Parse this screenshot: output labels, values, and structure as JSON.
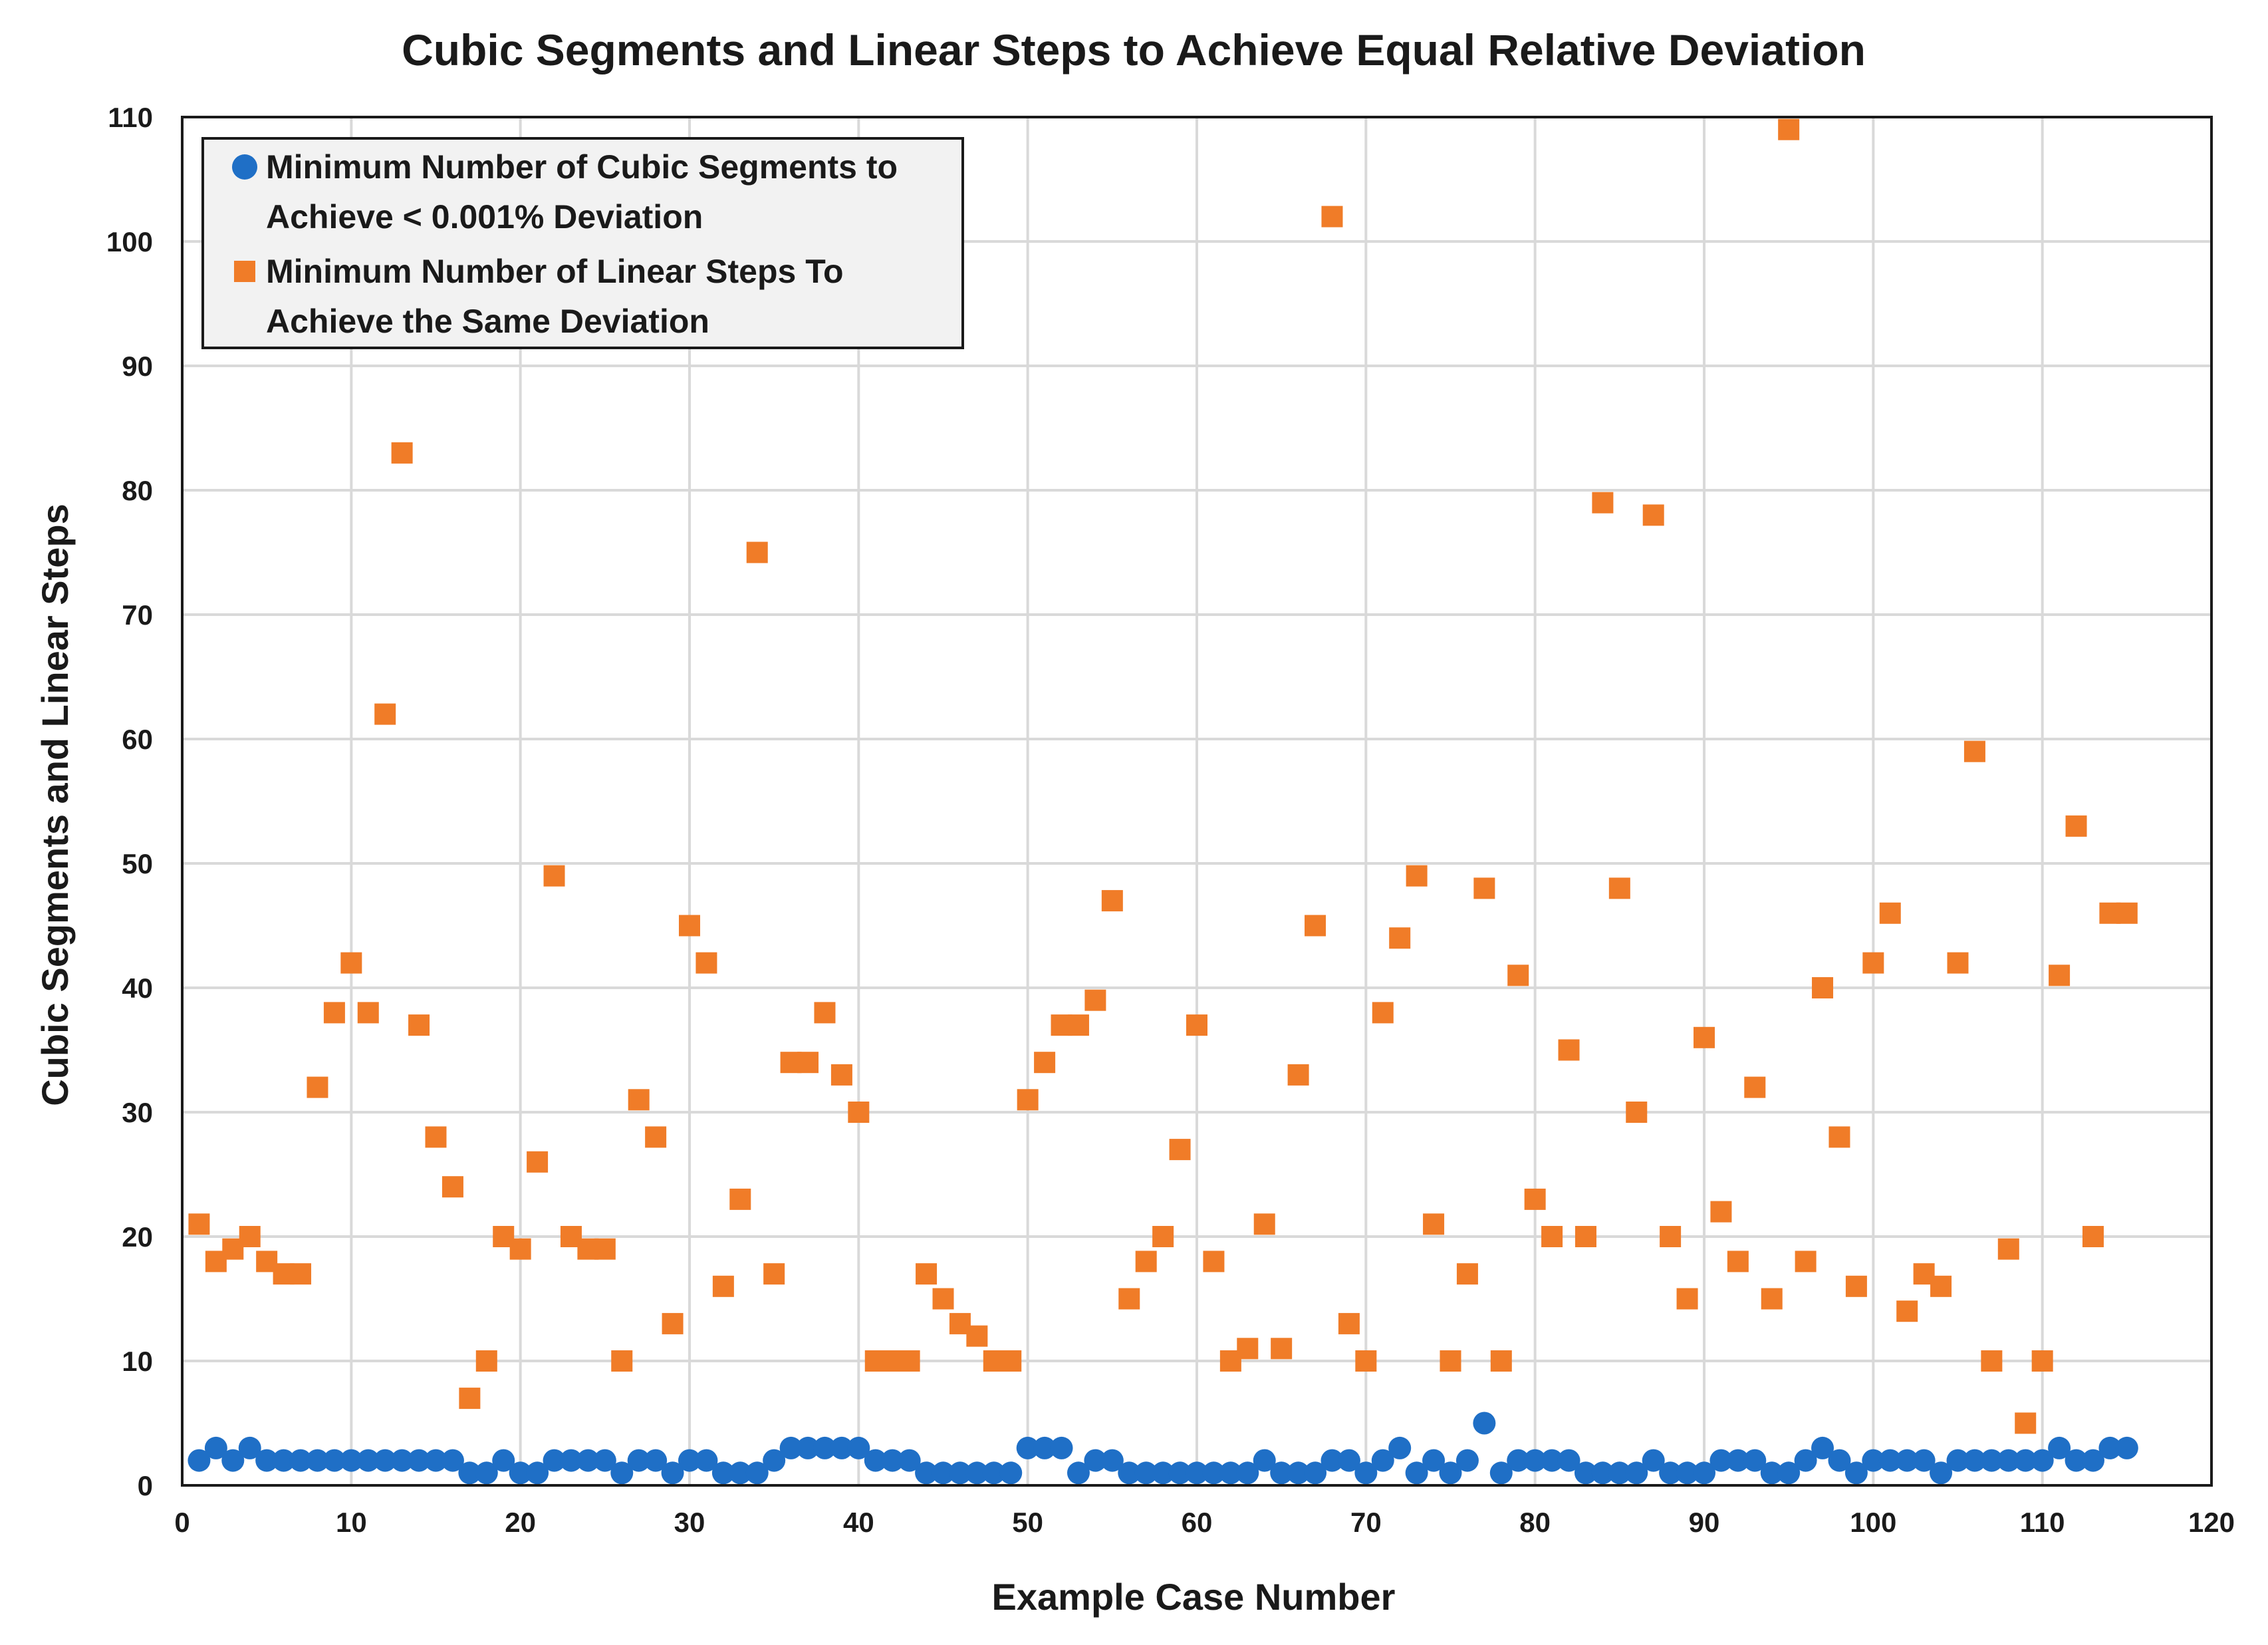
{
  "chart_data": {
    "type": "scatter",
    "title": "Cubic Segments and Linear Steps to Achieve Equal Relative Deviation",
    "xlabel": "Example Case Number",
    "ylabel": "Cubic Segments and Linear Steps",
    "xlim": [
      0,
      120
    ],
    "ylim": [
      0,
      110
    ],
    "x_ticks": [
      0,
      10,
      20,
      30,
      40,
      50,
      60,
      70,
      80,
      90,
      100,
      110,
      120
    ],
    "y_ticks": [
      0,
      10,
      20,
      30,
      40,
      50,
      60,
      70,
      80,
      90,
      100,
      110
    ],
    "grid": true,
    "legend_position": "top-left",
    "series": [
      {
        "name": "Minimum Number of Cubic Segments to Achieve < 0.001% Deviation",
        "legend_lines": [
          "Minimum Number of Cubic Segments to",
          "Achieve < 0.001% Deviation"
        ],
        "color": "#1f6fc6",
        "marker": "circle",
        "x": [
          1,
          2,
          3,
          4,
          5,
          6,
          7,
          8,
          9,
          10,
          11,
          12,
          13,
          14,
          15,
          16,
          17,
          18,
          19,
          20,
          21,
          22,
          23,
          24,
          25,
          26,
          27,
          28,
          29,
          30,
          31,
          32,
          33,
          34,
          35,
          36,
          37,
          38,
          39,
          40,
          41,
          42,
          43,
          44,
          45,
          46,
          47,
          48,
          49,
          50,
          51,
          52,
          53,
          54,
          55,
          56,
          57,
          58,
          59,
          60,
          61,
          62,
          63,
          64,
          65,
          66,
          67,
          68,
          69,
          70,
          71,
          72,
          73,
          74,
          75,
          76,
          77,
          78,
          79,
          80,
          81,
          82,
          83,
          84,
          85,
          86,
          87,
          88,
          89,
          90,
          91,
          92,
          93,
          94,
          95,
          96,
          97,
          98,
          99,
          100,
          101,
          102,
          103,
          104,
          105,
          106,
          107,
          108,
          109,
          110,
          111,
          112,
          113,
          114,
          115
        ],
        "y": [
          2,
          3,
          2,
          3,
          2,
          2,
          2,
          2,
          2,
          2,
          2,
          2,
          2,
          2,
          2,
          2,
          1,
          1,
          2,
          1,
          1,
          2,
          2,
          2,
          2,
          1,
          2,
          2,
          1,
          2,
          2,
          1,
          1,
          1,
          2,
          3,
          3,
          3,
          3,
          3,
          2,
          2,
          2,
          1,
          1,
          1,
          1,
          1,
          1,
          3,
          3,
          3,
          1,
          2,
          2,
          1,
          1,
          1,
          1,
          1,
          1,
          1,
          1,
          2,
          1,
          1,
          1,
          2,
          2,
          1,
          2,
          3,
          1,
          2,
          1,
          2,
          5,
          1,
          2,
          2,
          2,
          2,
          1,
          1,
          1,
          1,
          2,
          1,
          1,
          1,
          2,
          2,
          2,
          1,
          1,
          2,
          3,
          2,
          1,
          2,
          2,
          2,
          2,
          1,
          2,
          2,
          2,
          2,
          2,
          2,
          3,
          2,
          2,
          3,
          3
        ]
      },
      {
        "name": "Minimum Number of Linear Steps To Achieve the Same Deviation",
        "legend_lines": [
          "Minimum Number of Linear Steps To",
          "Achieve the Same Deviation"
        ],
        "color": "#f07c28",
        "marker": "square",
        "x": [
          1,
          2,
          3,
          4,
          5,
          6,
          7,
          8,
          9,
          10,
          11,
          12,
          13,
          14,
          15,
          16,
          17,
          18,
          19,
          20,
          21,
          22,
          23,
          24,
          25,
          26,
          27,
          28,
          29,
          30,
          31,
          32,
          33,
          34,
          35,
          36,
          37,
          38,
          39,
          40,
          41,
          42,
          43,
          44,
          45,
          46,
          47,
          48,
          49,
          50,
          51,
          52,
          53,
          54,
          55,
          56,
          57,
          58,
          59,
          60,
          61,
          62,
          63,
          64,
          65,
          66,
          67,
          68,
          69,
          70,
          71,
          72,
          73,
          74,
          75,
          76,
          77,
          78,
          79,
          80,
          81,
          82,
          83,
          84,
          85,
          86,
          87,
          88,
          89,
          90,
          91,
          92,
          93,
          94,
          95,
          96,
          97,
          98,
          99,
          100,
          101,
          102,
          103,
          104,
          105,
          106,
          107,
          108,
          109,
          110,
          111,
          112,
          113,
          114,
          115
        ],
        "y": [
          21,
          18,
          19,
          20,
          18,
          17,
          17,
          32,
          38,
          42,
          38,
          62,
          83,
          37,
          28,
          24,
          7,
          10,
          20,
          19,
          26,
          49,
          20,
          19,
          19,
          10,
          31,
          28,
          13,
          45,
          42,
          16,
          23,
          75,
          17,
          34,
          34,
          38,
          33,
          30,
          10,
          10,
          10,
          17,
          15,
          13,
          12,
          10,
          10,
          31,
          34,
          37,
          37,
          39,
          47,
          15,
          18,
          20,
          27,
          37,
          18,
          10,
          11,
          21,
          11,
          33,
          45,
          102,
          13,
          10,
          38,
          44,
          49,
          21,
          10,
          17,
          48,
          10,
          41,
          23,
          20,
          35,
          20,
          79,
          48,
          30,
          78,
          20,
          15,
          36,
          22,
          18,
          32,
          15,
          109,
          18,
          40,
          28,
          16,
          42,
          46,
          14,
          17,
          16,
          42,
          59,
          10,
          19,
          5,
          10,
          41,
          53,
          20,
          46,
          46
        ]
      }
    ]
  }
}
